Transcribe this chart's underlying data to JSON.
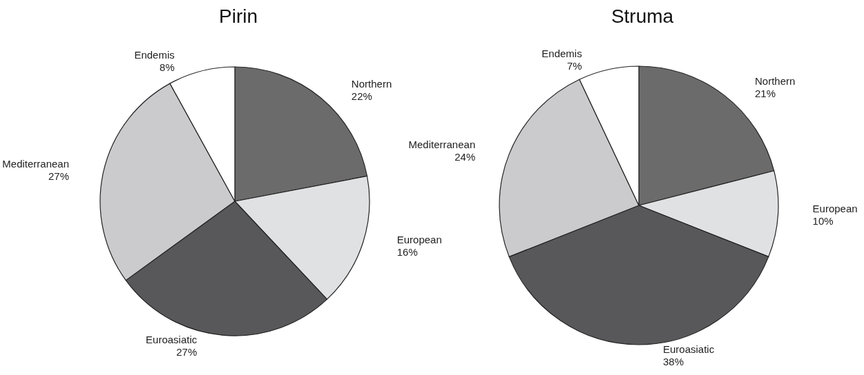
{
  "chart_data": [
    {
      "type": "pie",
      "title": "Pirin",
      "categories": [
        "Northern",
        "European",
        "Euroasiatic",
        "Mediterranean",
        "Endemis"
      ],
      "values": [
        22,
        16,
        27,
        27,
        8
      ],
      "value_labels": [
        "22%",
        "16%",
        "27%",
        "27%",
        "8%"
      ],
      "colors": [
        "#6b6b6b",
        "#e0e1e3",
        "#58585a",
        "#cbcbcd",
        "#ffffff"
      ],
      "legend": false
    },
    {
      "type": "pie",
      "title": "Struma",
      "categories": [
        "Northern",
        "European",
        "Euroasiatic",
        "Mediterranean",
        "Endemis"
      ],
      "values": [
        21,
        10,
        38,
        24,
        7
      ],
      "value_labels": [
        "21%",
        "10%",
        "38%",
        "24%",
        "7%"
      ],
      "colors": [
        "#6b6b6b",
        "#e0e1e3",
        "#58585a",
        "#cbcbcd",
        "#ffffff"
      ],
      "legend": false
    }
  ]
}
